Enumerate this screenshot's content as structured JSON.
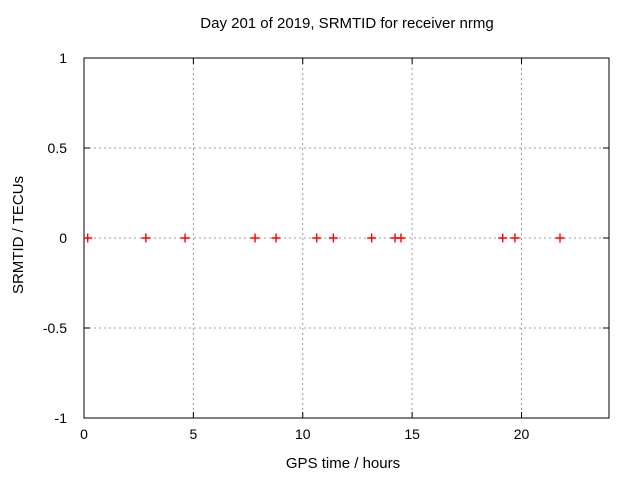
{
  "window": {
    "background": "#ffffff"
  },
  "chart_data": {
    "type": "scatter",
    "title": "Day 201 of 2019, SRMTID for receiver nrmg",
    "xlabel": "GPS time / hours",
    "ylabel": "SRMTID / TECUs",
    "xlim": [
      0,
      24
    ],
    "ylim": [
      -1,
      1
    ],
    "xticks": {
      "values": [
        0,
        5,
        10,
        15,
        20
      ],
      "labels": [
        "0",
        "5",
        "10",
        "15",
        "20"
      ]
    },
    "yticks": {
      "values": [
        1,
        0.5,
        0,
        -0.5,
        -1
      ],
      "labels": [
        "1",
        "0.5",
        "0",
        "-0.5",
        "-1"
      ]
    },
    "grid": true,
    "legend": "none",
    "colors": {
      "marker": "#ff0000",
      "grid": "#9c9c9c",
      "axis": "#000000",
      "text": "#000000",
      "background": "#ffffff"
    },
    "series": [
      {
        "name": "SRMTID",
        "marker": "plus",
        "x": [
          0.17,
          2.83,
          4.62,
          7.82,
          8.78,
          10.64,
          11.4,
          13.15,
          14.22,
          14.49,
          19.14,
          19.7,
          21.76
        ],
        "y": [
          0,
          0,
          0,
          0,
          0,
          0,
          0,
          0,
          0,
          0,
          0,
          0,
          0
        ]
      }
    ]
  }
}
